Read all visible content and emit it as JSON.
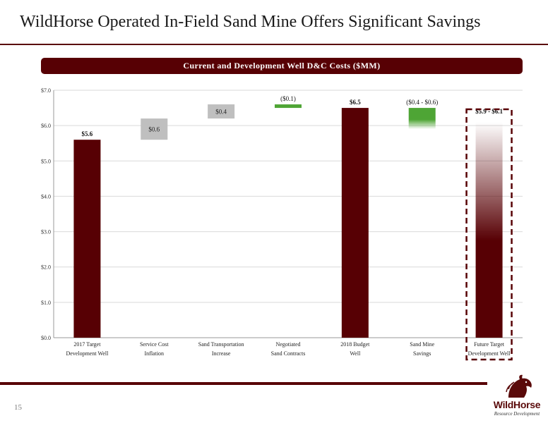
{
  "page": {
    "title": "WildHorse Operated In-Field Sand Mine Offers Significant Savings",
    "page_number": "15"
  },
  "logo": {
    "name": "WildHorse",
    "subtitle": "Resource Development"
  },
  "colors": {
    "brand": "#570004",
    "bar_total": "#570004",
    "bar_increase": "#bfbfbf",
    "bar_decrease": "#4ea535",
    "grid": "#d9d9d9"
  },
  "chart_data": {
    "type": "bar",
    "subtype": "waterfall",
    "title": "Current and Development Well D&C Costs ($MM)",
    "xlabel": "",
    "ylabel": "",
    "ylim": [
      0,
      7
    ],
    "grid": true,
    "yticks": [
      "$0.0",
      "$1.0",
      "$2.0",
      "$3.0",
      "$4.0",
      "$5.0",
      "$6.0",
      "$7.0"
    ],
    "categories": [
      [
        "2017 Target",
        "Development Well"
      ],
      [
        "Service Cost",
        "Inflation"
      ],
      [
        "Sand Transportation",
        "Increase"
      ],
      [
        "Negotiated",
        "Sand Contracts"
      ],
      [
        "2018 Budget",
        "Well"
      ],
      [
        "Sand Mine",
        "Savings"
      ],
      [
        "Future Target",
        "Development Well"
      ]
    ],
    "bars": [
      {
        "kind": "total",
        "start": 0,
        "end": 5.6,
        "label": "$5.6"
      },
      {
        "kind": "increase",
        "start": 5.6,
        "end": 6.2,
        "label": "$0.6"
      },
      {
        "kind": "increase",
        "start": 6.2,
        "end": 6.6,
        "label": "$0.4"
      },
      {
        "kind": "decrease",
        "start": 6.6,
        "end": 6.5,
        "label": "($0.1)"
      },
      {
        "kind": "total",
        "start": 0,
        "end": 6.5,
        "label": "$6.5"
      },
      {
        "kind": "decrease-range",
        "start": 6.5,
        "end": 5.9,
        "end_alt": 6.1,
        "label": "($0.4 - $0.6)"
      },
      {
        "kind": "total-range",
        "start": 0,
        "end": 5.9,
        "end_alt": 6.1,
        "label": "$5.9 - $6.1",
        "highlighted": true
      }
    ]
  }
}
